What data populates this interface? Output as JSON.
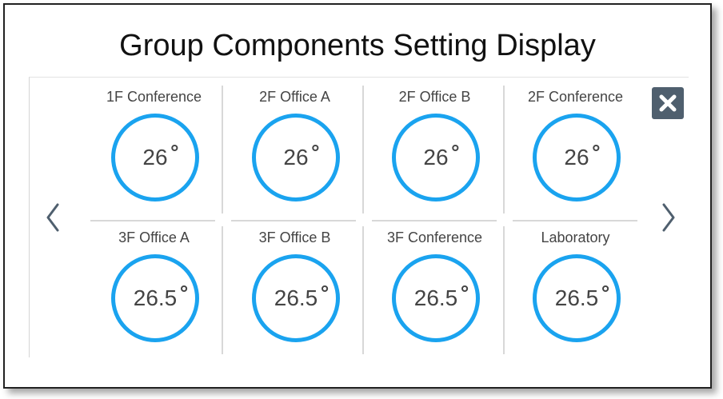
{
  "title": "Group Components Setting Display",
  "colors": {
    "ring": "#1aa3ef",
    "close_bg": "#4f5f6e"
  },
  "controls": {
    "prev_icon": "chevron-left-icon",
    "next_icon": "chevron-right-icon",
    "close_icon": "close-icon"
  },
  "zones": [
    {
      "name": "1F Conference",
      "temp": "26"
    },
    {
      "name": "2F Office A",
      "temp": "26"
    },
    {
      "name": "2F Office B",
      "temp": "26"
    },
    {
      "name": "2F Conference",
      "temp": "26"
    },
    {
      "name": "3F Office A",
      "temp": "26.5"
    },
    {
      "name": "3F Office B",
      "temp": "26.5"
    },
    {
      "name": "3F Conference",
      "temp": "26.5"
    },
    {
      "name": "Laboratory",
      "temp": "26.5"
    }
  ]
}
